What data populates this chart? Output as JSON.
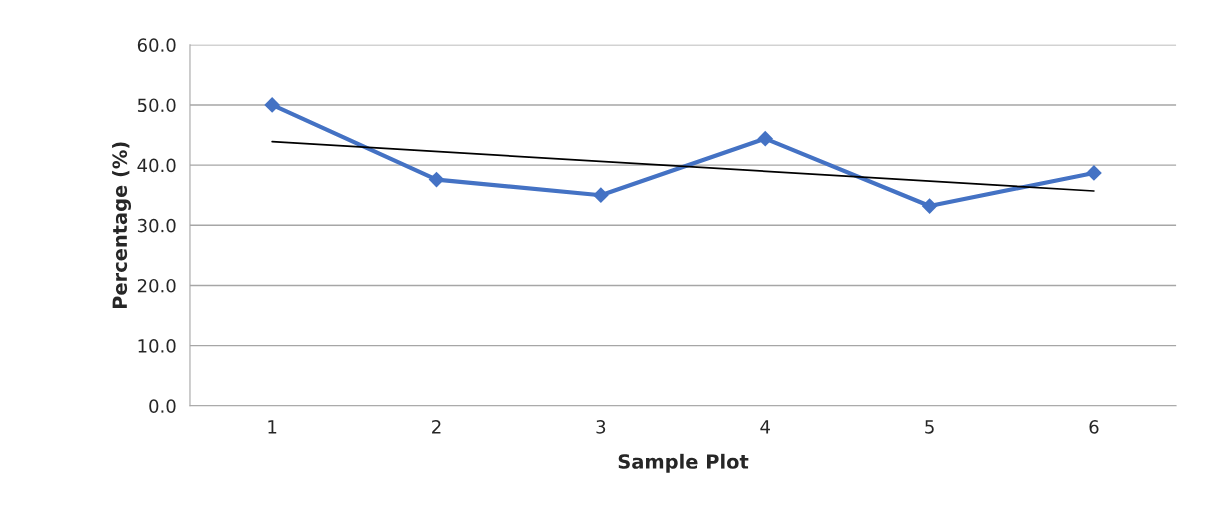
{
  "chart_data": {
    "type": "line",
    "xlabel": "Sample Plot",
    "ylabel": "Percentage (%)",
    "categories": [
      "1",
      "2",
      "3",
      "4",
      "5",
      "6"
    ],
    "series": [
      {
        "color": "#4472c4",
        "values": [
          50.0,
          37.6,
          35.0,
          44.4,
          33.2,
          38.7
        ],
        "marker": "diamond"
      },
      {
        "type": "line",
        "color": "#000000",
        "x": [
          "1",
          "6"
        ],
        "values": [
          43.9,
          35.7
        ],
        "marker": "none"
      }
    ],
    "ylim": [
      0,
      60
    ],
    "yticks": [
      {
        "value": 0,
        "label": "0.0"
      },
      {
        "value": 10,
        "label": "10.0"
      },
      {
        "value": 20,
        "label": "20.0"
      },
      {
        "value": 30,
        "label": "30.0"
      },
      {
        "value": 40,
        "label": "40.0"
      },
      {
        "value": 50,
        "label": "50.0"
      },
      {
        "value": 60,
        "label": "60.0"
      }
    ],
    "grid": "y"
  }
}
